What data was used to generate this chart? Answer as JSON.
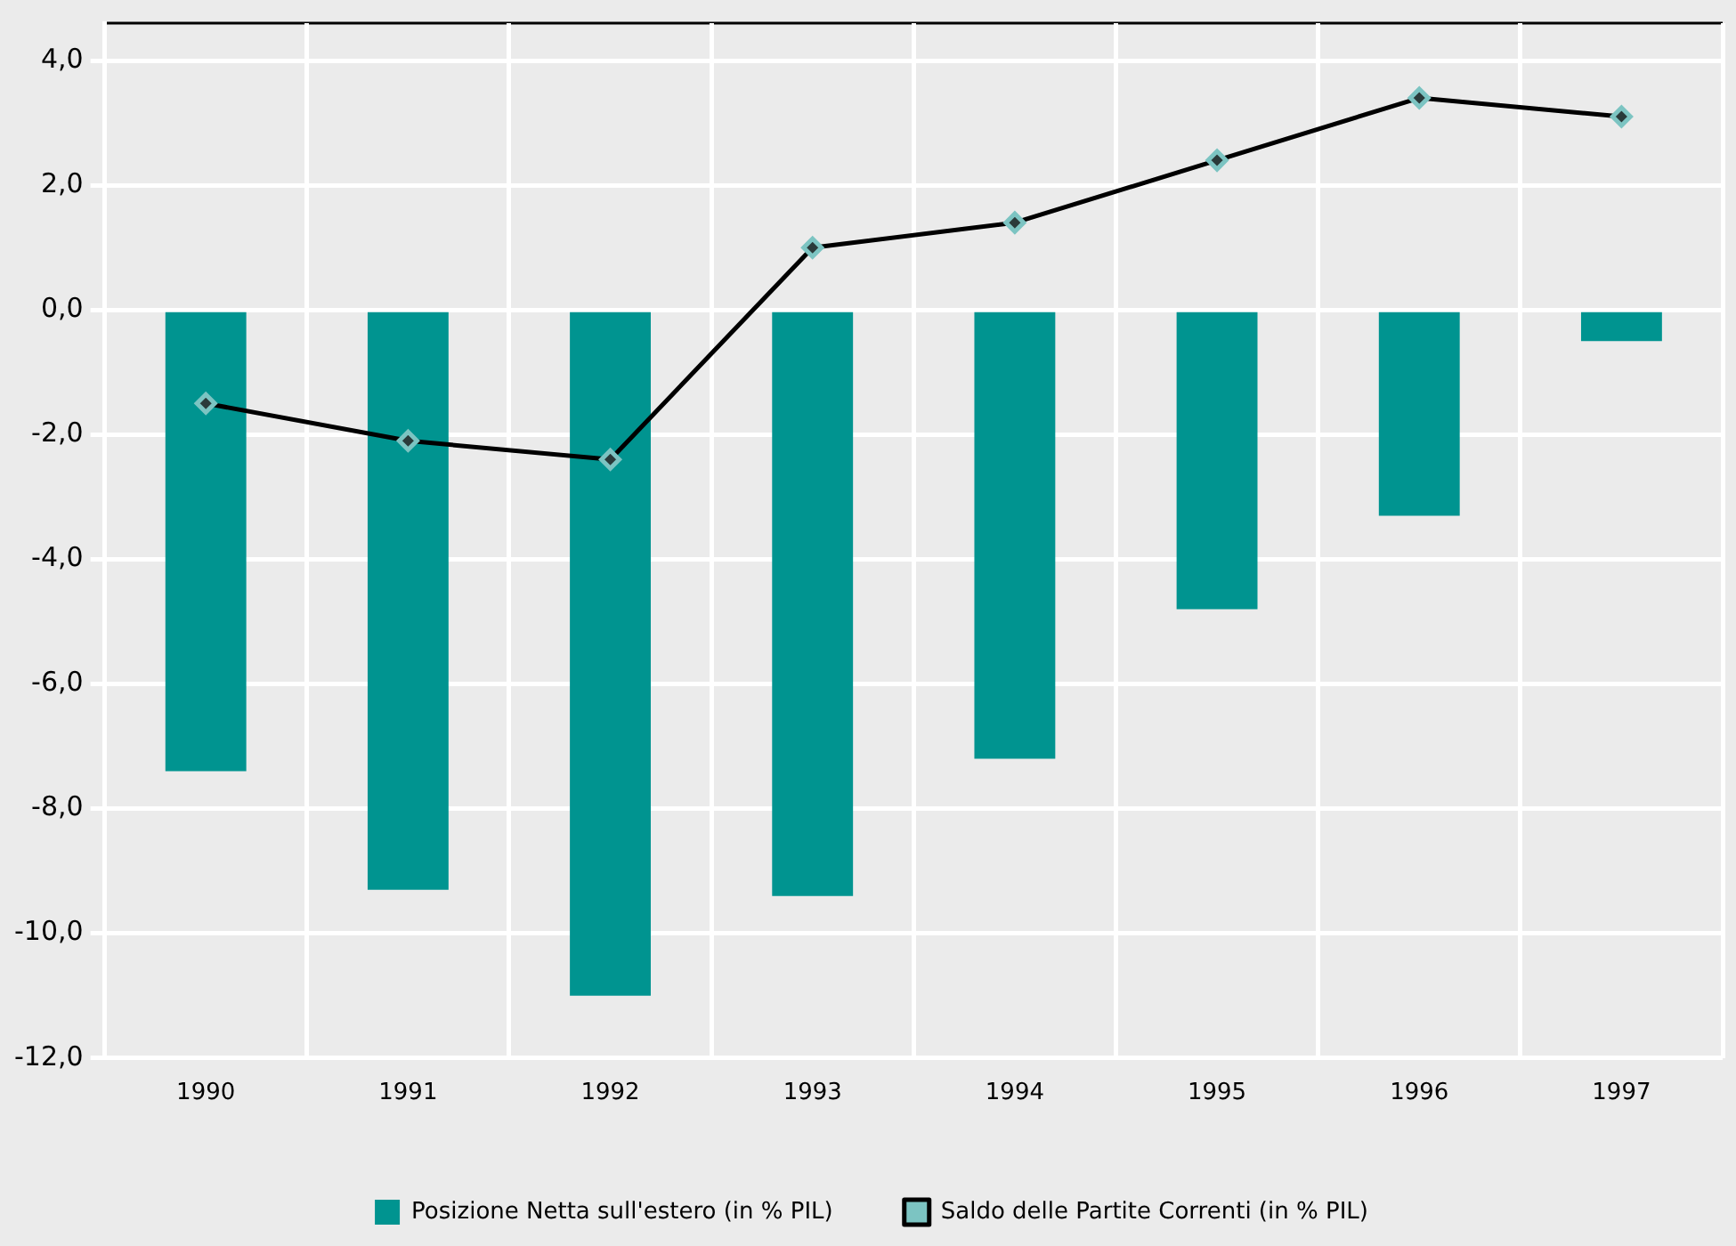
{
  "chart_data": {
    "type": "bar",
    "categories": [
      "1990",
      "1991",
      "1992",
      "1993",
      "1994",
      "1995",
      "1996",
      "1997"
    ],
    "series": [
      {
        "name": "Posizione Netta sull'estero (in % PIL)",
        "color": "#009490",
        "values": [
          -7.4,
          -9.3,
          -11.0,
          -9.4,
          -7.2,
          -4.8,
          -3.3,
          -0.5
        ]
      },
      {
        "name": "Saldo delle Partite Correnti (in % PIL)",
        "type": "line",
        "color": "#000000",
        "values": [
          -1.5,
          -2.1,
          -2.4,
          1.0,
          1.4,
          2.4,
          3.4,
          3.1
        ]
      }
    ],
    "ylim": [
      -12,
      4.6
    ],
    "yticks": [
      {
        "value": -12,
        "label": "-12,0"
      },
      {
        "value": -10,
        "label": "-10,0"
      },
      {
        "value": -8,
        "label": "-8,0"
      },
      {
        "value": -6,
        "label": "-6,0"
      },
      {
        "value": -4,
        "label": "-4,0"
      },
      {
        "value": -2,
        "label": "-2,0"
      },
      {
        "value": 0,
        "label": "0,0"
      },
      {
        "value": 2,
        "label": "2,0"
      },
      {
        "value": 4,
        "label": "4,0"
      }
    ],
    "grid": true,
    "legend": "bottom",
    "marker": "diamond",
    "line_style": "solid"
  }
}
